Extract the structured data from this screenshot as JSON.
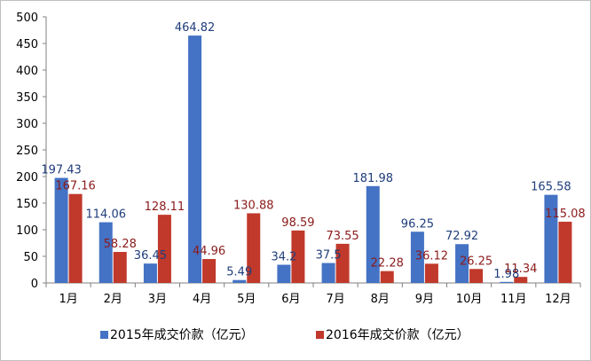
{
  "chart_data": {
    "type": "bar",
    "categories": [
      "1月",
      "2月",
      "3月",
      "4月",
      "5月",
      "6月",
      "7月",
      "8月",
      "9月",
      "10月",
      "11月",
      "12月"
    ],
    "series": [
      {
        "name": "2015年成交价款（亿元）",
        "color": "#4472c4",
        "values": [
          197.43,
          114.06,
          36.45,
          464.82,
          5.49,
          34.2,
          37.5,
          181.98,
          96.25,
          72.92,
          1.98,
          165.58
        ],
        "labels": [
          "197.43",
          "114.06",
          "36.45",
          "464.82",
          "5.49",
          "34.2",
          "37.5",
          "181.98",
          "96.25",
          "72.92",
          "1.98",
          "165.58"
        ]
      },
      {
        "name": "2016年成交价款（亿元）",
        "color": "#c0392b",
        "values": [
          167.16,
          58.28,
          128.11,
          44.96,
          130.88,
          98.59,
          73.55,
          22.28,
          36.12,
          26.25,
          11.34,
          115.08
        ],
        "labels": [
          "167.16",
          "58.28",
          "128.11",
          "44.96",
          "130.88",
          "98.59",
          "73.55",
          "22.28",
          "36.12",
          "26.25",
          "11.34",
          "115.08"
        ]
      }
    ],
    "ylim": [
      0,
      500
    ],
    "yticks": [
      "0",
      "50",
      "100",
      "150",
      "200",
      "250",
      "300",
      "350",
      "400",
      "450",
      "500"
    ],
    "grid": false,
    "legend": "bottom"
  }
}
